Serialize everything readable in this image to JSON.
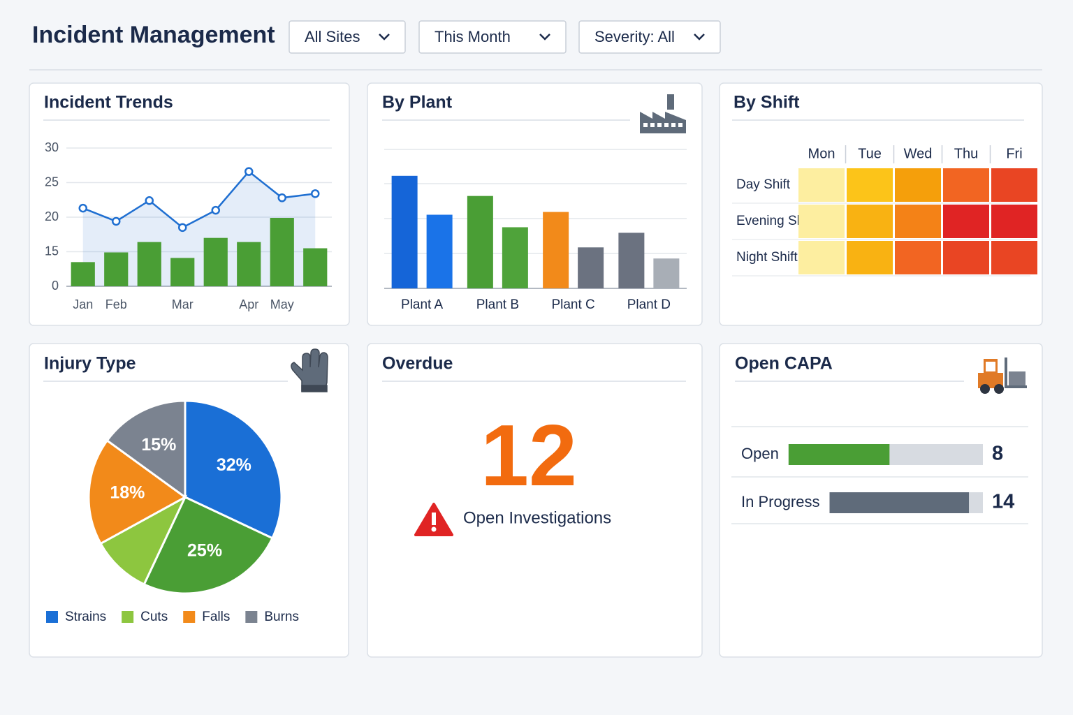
{
  "header": {
    "title": "Incident Management"
  },
  "filters": [
    "All Sites",
    "This Month",
    "Severity: All"
  ],
  "chart_data": [
    {
      "type": "combo",
      "title": "Incident Trends",
      "categories": [
        "Jan",
        "Feb",
        null,
        "Mar",
        null,
        "Apr",
        "May",
        null
      ],
      "series": [
        {
          "type": "bar",
          "color": "#4a9e35",
          "values": [
            10.5,
            14.7,
            16.4,
            12.3,
            17.0,
            16.4,
            19.9,
            15.5
          ]
        },
        {
          "type": "line",
          "color": "#1f6fd1",
          "values": [
            21.3,
            19.4,
            22.4,
            18.5,
            21.0,
            26.6,
            22.8,
            23.4
          ]
        }
      ],
      "ylim": [
        0,
        30
      ],
      "yticks": [
        0,
        15,
        20,
        25,
        30
      ],
      "grid": true
    },
    {
      "type": "bar",
      "title": "By Plant",
      "categories": [
        "Plant A",
        "Plant B",
        "Plant C",
        "Plant D"
      ],
      "series": [
        {
          "colors": [
            "#1565d8",
            "#4a9e35",
            "#f28a1a",
            "#6b7280"
          ],
          "values": [
            16.2,
            13.3,
            11.0,
            8.0
          ]
        },
        {
          "colors": [
            "#1a73e8",
            "#4fa33a",
            "#6b7280",
            "#a8aeb6"
          ],
          "values": [
            10.6,
            8.8,
            5.9,
            4.3
          ]
        }
      ],
      "ylim": [
        0,
        20
      ],
      "grid": true
    },
    {
      "type": "heatmap",
      "title": "By Shift",
      "x": [
        "Mon",
        "Tue",
        "Wed",
        "Thu",
        "Fri"
      ],
      "y": [
        "Day Shift",
        "Evening Shift",
        "Night Shift"
      ],
      "values": [
        [
          1,
          2,
          3,
          4,
          4.5
        ],
        [
          1,
          2.5,
          3.5,
          5,
          5
        ],
        [
          1,
          2.5,
          4,
          4.5,
          4.5
        ]
      ],
      "colorscale": [
        "#fdeea0",
        "#fcc419",
        "#f59f0b",
        "#f26522",
        "#e02424"
      ]
    },
    {
      "type": "pie",
      "title": "Injury Type",
      "series": [
        {
          "name": "Strains",
          "color": "#1a6fd6",
          "value": 32,
          "value_label": "32%"
        },
        {
          "name": null,
          "color": "#4a9e35",
          "value": 25,
          "value_label": "25%"
        },
        {
          "name": "Cuts",
          "color": "#8dc63f",
          "value": 10,
          "value_label": null
        },
        {
          "name": "Falls",
          "color": "#f28a1a",
          "value": 18,
          "value_label": "18%"
        },
        {
          "name": "Burns",
          "color": "#7b8390",
          "value": 15,
          "value_label": "15%"
        }
      ]
    },
    {
      "type": "kpi",
      "title": "Overdue",
      "value": 12,
      "label": "Open Investigations",
      "color": "#f26b0f"
    },
    {
      "type": "hbar",
      "title": "Open CAPA",
      "categories": [
        "Open",
        "In Progress"
      ],
      "values": [
        8,
        14
      ],
      "colors": [
        "#4a9e35",
        "#5f6b7a"
      ]
    }
  ]
}
